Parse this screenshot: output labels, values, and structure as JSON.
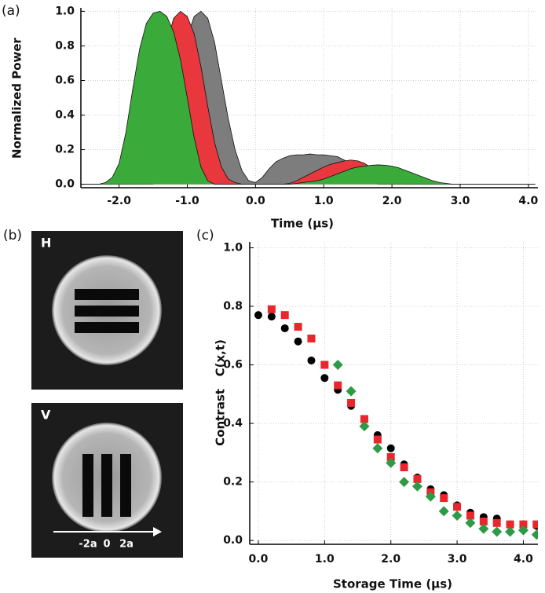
{
  "chart_data": [
    {
      "type": "area",
      "panel_label": "(a)",
      "x_label": "Time (µs)",
      "y_label": "Normalized Power",
      "x": [
        -2.5,
        -2.4,
        -2.3,
        -2.2,
        -2.1,
        -2.0,
        -1.9,
        -1.8,
        -1.7,
        -1.6,
        -1.5,
        -1.4,
        -1.3,
        -1.2,
        -1.1,
        -1.0,
        -0.9,
        -0.8,
        -0.7,
        -0.6,
        -0.5,
        -0.4,
        -0.3,
        -0.2,
        -0.1,
        0.0,
        0.1,
        0.2,
        0.3,
        0.4,
        0.5,
        0.6,
        0.7,
        0.8,
        0.9,
        1.0,
        1.1,
        1.2,
        1.3,
        1.4,
        1.5,
        1.6,
        1.7,
        1.8,
        1.9,
        2.0,
        2.1,
        2.2,
        2.3,
        2.4,
        2.5,
        2.6,
        2.7,
        2.8,
        2.9,
        3.0,
        3.1,
        3.2,
        3.3,
        3.4,
        3.5,
        3.6,
        3.7,
        3.8,
        3.9,
        4.0,
        4.1
      ],
      "series": [
        {
          "color": "#7d7d7d",
          "values": [
            0,
            0,
            0,
            0,
            0,
            0,
            0,
            0,
            0,
            0,
            0,
            0.02,
            0.1,
            0.3,
            0.6,
            0.85,
            0.97,
            1.0,
            0.96,
            0.82,
            0.6,
            0.38,
            0.2,
            0.08,
            0.02,
            0.01,
            0.04,
            0.09,
            0.13,
            0.15,
            0.165,
            0.17,
            0.17,
            0.175,
            0.17,
            0.17,
            0.165,
            0.16,
            0.14,
            0.11,
            0.07,
            0.035,
            0.01,
            0,
            0,
            0,
            0,
            0,
            0,
            0,
            0,
            0,
            0,
            0,
            0,
            0,
            0,
            0,
            0,
            0,
            0,
            0,
            0,
            0,
            0,
            0,
            0
          ]
        },
        {
          "color": "#e8383d",
          "values": [
            0,
            0,
            0,
            0,
            0,
            0,
            0,
            0,
            0.02,
            0.08,
            0.25,
            0.55,
            0.82,
            0.96,
            1.0,
            0.97,
            0.87,
            0.68,
            0.45,
            0.24,
            0.1,
            0.03,
            0.01,
            0,
            0,
            0,
            0,
            0,
            0,
            0,
            0.005,
            0.02,
            0.04,
            0.06,
            0.08,
            0.1,
            0.115,
            0.125,
            0.135,
            0.14,
            0.135,
            0.12,
            0.095,
            0.065,
            0.035,
            0.015,
            0.005,
            0,
            0,
            0,
            0,
            0,
            0,
            0,
            0,
            0,
            0,
            0,
            0,
            0,
            0,
            0,
            0,
            0,
            0,
            0,
            0
          ]
        },
        {
          "color": "#3aaa3a",
          "values": [
            0,
            0,
            0,
            0.01,
            0.04,
            0.12,
            0.3,
            0.55,
            0.78,
            0.93,
            0.99,
            1.0,
            0.97,
            0.88,
            0.72,
            0.5,
            0.27,
            0.1,
            0.02,
            0,
            0,
            0,
            0,
            0,
            0,
            0,
            0,
            0,
            0,
            0,
            0,
            0.005,
            0.01,
            0.015,
            0.02,
            0.03,
            0.045,
            0.06,
            0.075,
            0.09,
            0.1,
            0.105,
            0.11,
            0.112,
            0.11,
            0.105,
            0.095,
            0.08,
            0.065,
            0.05,
            0.035,
            0.02,
            0.01,
            0.005,
            0,
            0,
            0,
            0,
            0,
            0,
            0,
            0,
            0,
            0,
            0,
            0,
            0
          ]
        }
      ],
      "xlim": [
        -2.56,
        4.14
      ],
      "ylim": [
        -0.02,
        1.02
      ],
      "xticks": [
        {
          "value": -2,
          "label": "-2.0"
        },
        {
          "value": -1,
          "label": "-1.0"
        },
        {
          "value": 0,
          "label": "0.0"
        },
        {
          "value": 1,
          "label": "1.0"
        },
        {
          "value": 2,
          "label": "2.0"
        },
        {
          "value": 3,
          "label": "3.0"
        },
        {
          "value": 4,
          "label": "4.0"
        }
      ],
      "yticks": [
        {
          "value": 0,
          "label": "0.0"
        },
        0.2,
        0.4,
        0.6,
        0.8,
        {
          "value": 1,
          "label": "1.0"
        }
      ],
      "grid": true
    },
    {
      "type": "scatter",
      "panel_label": "(c)",
      "x_label": "Storage Time (µs)",
      "y_label": "Contrast   C(x,t)",
      "series": [
        {
          "color": "#000000",
          "marker": "circle",
          "x": [
            0,
            0.2,
            0.4,
            0.6,
            0.8,
            1.0,
            1.2,
            1.4,
            1.6,
            1.8,
            2.0,
            2.2,
            2.4,
            2.6,
            2.8,
            3.0,
            3.2,
            3.4,
            3.6,
            3.8,
            4.0,
            4.2
          ],
          "values": [
            0.77,
            0.765,
            0.725,
            0.68,
            0.615,
            0.555,
            0.515,
            0.46,
            0.415,
            0.36,
            0.315,
            0.26,
            0.215,
            0.175,
            0.155,
            0.12,
            0.095,
            0.08,
            0.075,
            0.055,
            0.055,
            0.05
          ]
        },
        {
          "color": "#e8262b",
          "marker": "square",
          "x": [
            0.2,
            0.4,
            0.6,
            0.8,
            1.0,
            1.2,
            1.4,
            1.6,
            1.8,
            2.0,
            2.2,
            2.4,
            2.6,
            2.8,
            3.0,
            3.2,
            3.4,
            3.6,
            3.8,
            4.0,
            4.2
          ],
          "values": [
            0.79,
            0.77,
            0.73,
            0.69,
            0.6,
            0.53,
            0.47,
            0.415,
            0.345,
            0.285,
            0.25,
            0.21,
            0.165,
            0.145,
            0.115,
            0.085,
            0.065,
            0.06,
            0.055,
            0.055,
            0.055
          ]
        },
        {
          "color": "#2e9a46",
          "marker": "diamond",
          "x": [
            1.2,
            1.4,
            1.6,
            1.8,
            2.0,
            2.2,
            2.4,
            2.6,
            2.8,
            3.0,
            3.2,
            3.4,
            3.6,
            3.8,
            4.0,
            4.2
          ],
          "values": [
            0.6,
            0.51,
            0.39,
            0.315,
            0.265,
            0.2,
            0.185,
            0.15,
            0.1,
            0.085,
            0.06,
            0.04,
            0.03,
            0.03,
            0.035,
            0.02
          ]
        }
      ],
      "xlim": [
        -0.13,
        4.22
      ],
      "ylim": [
        -0.013,
        1.02
      ],
      "xticks": [
        {
          "value": 0,
          "label": "0.0"
        },
        {
          "value": 1,
          "label": "1.0"
        },
        {
          "value": 2,
          "label": "2.0"
        },
        {
          "value": 3,
          "label": "3.0"
        },
        {
          "value": 4,
          "label": "4.0"
        }
      ],
      "yticks": [
        {
          "value": 0,
          "label": "0.0"
        },
        0.2,
        0.4,
        0.6,
        0.8,
        {
          "value": 1,
          "label": "1.0"
        }
      ],
      "grid": true
    }
  ],
  "image_panel": {
    "panel_label": "(b)",
    "images": [
      {
        "label": "H"
      },
      {
        "label": "V",
        "axis_labels": [
          "-2a",
          "0",
          "2a"
        ]
      }
    ]
  }
}
